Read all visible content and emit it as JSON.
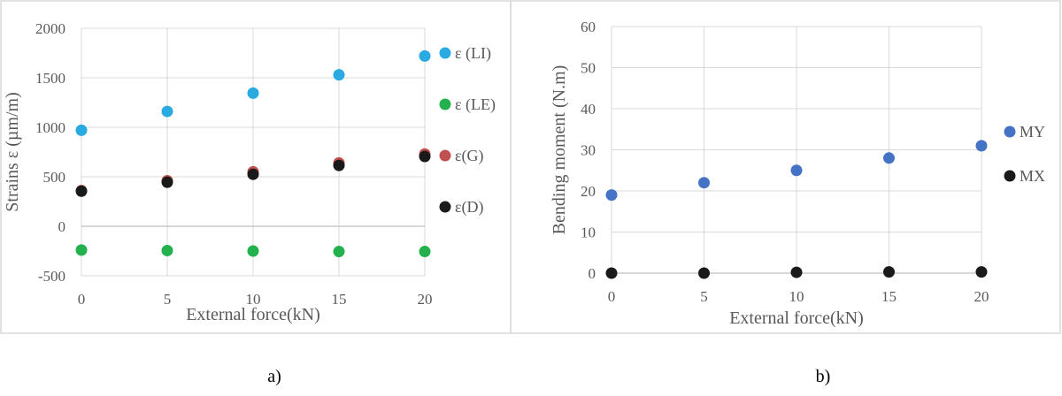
{
  "figure": {
    "caption_a": "a)",
    "caption_b": "b)"
  },
  "chart_data": [
    {
      "type": "scatter",
      "title": "",
      "xlabel": "External force(kN)",
      "ylabel": "Strains ε (µm/m)",
      "xlim": [
        0,
        20
      ],
      "ylim": [
        -500,
        2000
      ],
      "xticks": [
        "0",
        "5",
        "10",
        "15",
        "20"
      ],
      "yticks": [
        "-500",
        "0",
        "500",
        "1000",
        "1500",
        "2000"
      ],
      "grid": true,
      "legend_position": "right",
      "x": [
        0,
        5,
        10,
        15,
        20
      ],
      "series": [
        {
          "name": "ε (LI)",
          "color": "#29ABE2",
          "values": [
            970,
            1160,
            1345,
            1530,
            1720
          ]
        },
        {
          "name": "ε (LE)",
          "color": "#22B14C",
          "values": [
            -240,
            -245,
            -250,
            -255,
            -255
          ]
        },
        {
          "name": "ε(G)",
          "color": "#C0504D",
          "values": [
            360,
            460,
            550,
            640,
            730
          ]
        },
        {
          "name": "ε(D)",
          "color": "#1A1A1A",
          "values": [
            355,
            445,
            525,
            615,
            705
          ]
        }
      ]
    },
    {
      "type": "scatter",
      "title": "",
      "xlabel": "External force(kN)",
      "ylabel": "Bending moment (N.m)",
      "xlim": [
        0,
        20
      ],
      "ylim": [
        0,
        60
      ],
      "xticks": [
        "0",
        "5",
        "10",
        "15",
        "20"
      ],
      "yticks": [
        "0",
        "10",
        "20",
        "30",
        "40",
        "50",
        "60"
      ],
      "grid": true,
      "legend_position": "right",
      "x": [
        0,
        5,
        10,
        15,
        20
      ],
      "series": [
        {
          "name": "MY",
          "color": "#4472C4",
          "values": [
            19,
            22,
            25,
            28,
            31
          ]
        },
        {
          "name": "MX",
          "color": "#1A1A1A",
          "values": [
            0,
            0,
            0.2,
            0.3,
            0.3
          ]
        }
      ]
    }
  ]
}
